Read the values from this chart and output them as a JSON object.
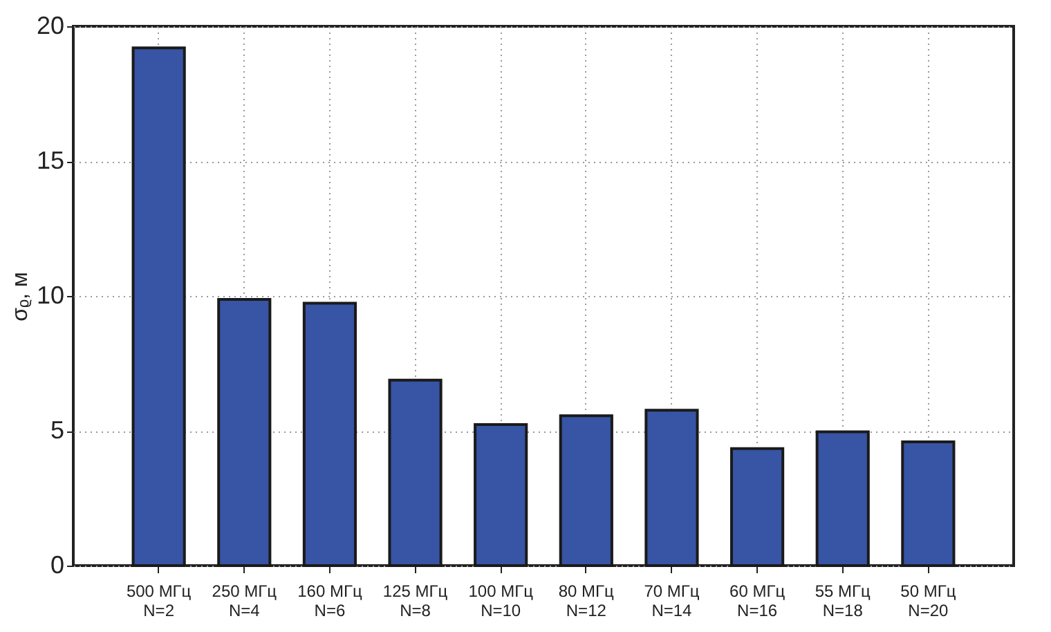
{
  "chart_data": {
    "type": "bar",
    "ylabel": "σᵨ, м",
    "categories": [
      "500 МГц\nN=2",
      "250 МГц\nN=4",
      "160 МГц\nN=6",
      "125 МГц\nN=8",
      "100 МГц\nN=10",
      "80 МГц\nN=12",
      "70 МГц\nN=14",
      "60 МГц\nN=16",
      "55 МГц\nN=18",
      "50 МГц\nN=20"
    ],
    "values": [
      19.2,
      9.87,
      9.73,
      6.88,
      5.23,
      5.56,
      5.76,
      4.34,
      4.96,
      4.59
    ],
    "color": "#3754a5",
    "ylim": [
      0,
      20
    ],
    "yticks": [
      0,
      5,
      10,
      15,
      20
    ],
    "grid": true
  }
}
